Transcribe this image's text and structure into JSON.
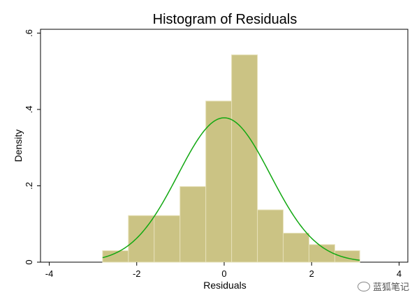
{
  "chart_data": {
    "type": "bar",
    "title": "Histogram of Residuals",
    "xlabel": "Residuals",
    "ylabel": "Density",
    "xlim": [
      -4.2,
      4.2
    ],
    "ylim": [
      0,
      0.61
    ],
    "xticks": [
      -4,
      -2,
      0,
      2,
      4
    ],
    "xtick_labels": [
      "-4",
      "-2",
      "0",
      "2",
      "4"
    ],
    "yticks": [
      0,
      0.2,
      0.4,
      0.6
    ],
    "ytick_labels": [
      "0",
      ".2",
      ".4",
      ".6"
    ],
    "bins": [
      {
        "x0": -2.78,
        "x1": -2.19,
        "value": 0.03
      },
      {
        "x0": -2.19,
        "x1": -1.6,
        "value": 0.122
      },
      {
        "x0": -1.6,
        "x1": -1.01,
        "value": 0.122
      },
      {
        "x0": -1.01,
        "x1": -0.42,
        "value": 0.198
      },
      {
        "x0": -0.42,
        "x1": 0.17,
        "value": 0.422
      },
      {
        "x0": 0.17,
        "x1": 0.76,
        "value": 0.543
      },
      {
        "x0": 0.76,
        "x1": 1.35,
        "value": 0.137
      },
      {
        "x0": 1.35,
        "x1": 1.94,
        "value": 0.076
      },
      {
        "x0": 1.94,
        "x1": 2.53,
        "value": 0.046
      },
      {
        "x0": 2.53,
        "x1": 3.1,
        "value": 0.03
      }
    ],
    "density_curve": {
      "mean": 0.0,
      "sd": 1.055,
      "x_range": [
        -2.78,
        3.1
      ]
    },
    "grid": false,
    "legend": "none",
    "colors": {
      "bar_fill": "#cbc384",
      "bar_edge": "#e6e0b8",
      "curve": "#11a811",
      "axis": "#000000"
    }
  },
  "watermark": {
    "text": "蓝狐笔记",
    "icon": "wechat-icon"
  }
}
